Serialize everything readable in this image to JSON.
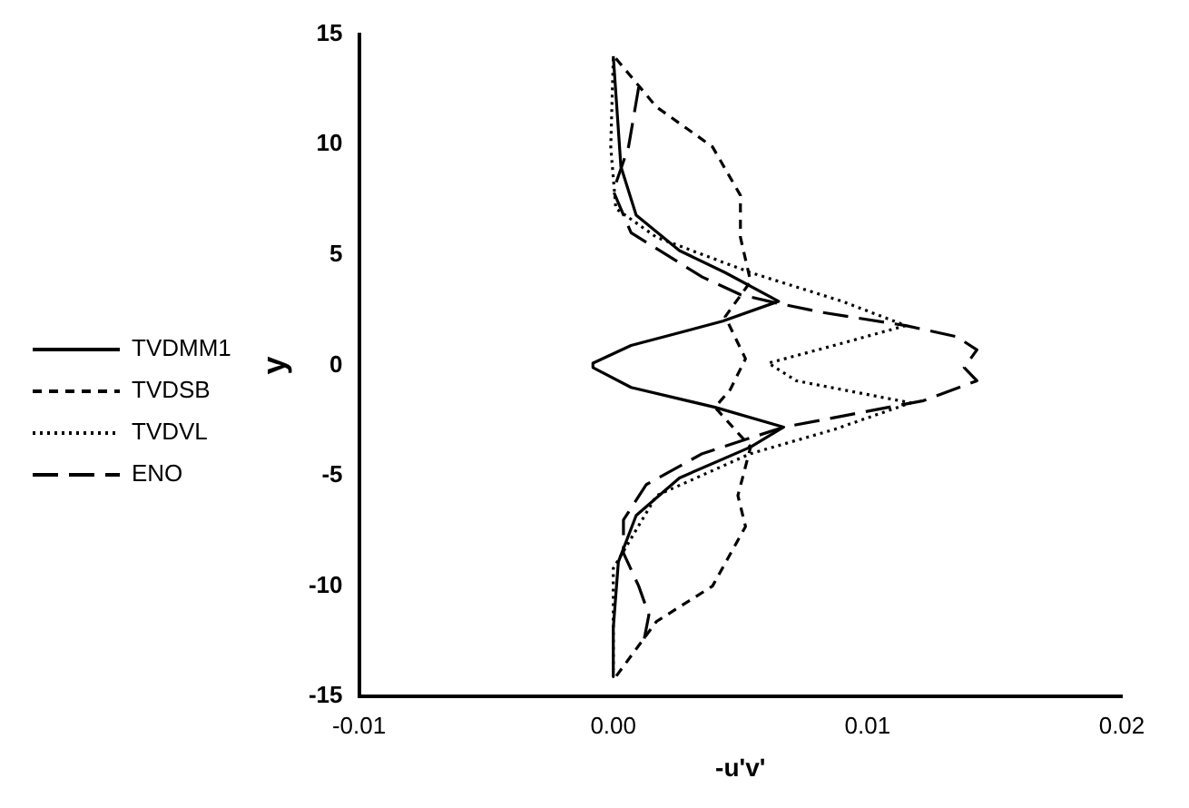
{
  "chart_data": {
    "type": "line",
    "xlabel": "-u'v'",
    "ylabel": "y",
    "xlim": [
      -0.01,
      0.02
    ],
    "ylim": [
      -15,
      15
    ],
    "xticks": [
      -0.01,
      {
        "value": 0,
        "label": "0.00"
      },
      0.01,
      0.02
    ],
    "yticks": [
      -15,
      -10,
      -5,
      0,
      5,
      10,
      15
    ],
    "grid": false,
    "legend": "left",
    "marker": "none",
    "series": [
      {
        "name": "TVDMM1",
        "color": "#000000",
        "line_style": "solid",
        "x": [
          0.0,
          0.0003,
          0.0009,
          0.0026,
          0.0044,
          0.0065,
          0.0043,
          0.0007,
          -0.0008,
          -0.0008,
          0.0007,
          0.004,
          0.0067,
          0.0054,
          0.0026,
          0.0009,
          0.0002,
          0.0,
          0.0
        ],
        "values": [
          14.0,
          9.0,
          6.8,
          5.2,
          4.2,
          2.9,
          2.0,
          0.9,
          0.1,
          -0.1,
          -1.0,
          -1.9,
          -2.8,
          -3.7,
          -5.1,
          -6.8,
          -8.9,
          -11.9,
          -14.1
        ]
      },
      {
        "name": "TVDSB",
        "color": "#000000",
        "line_style": "dashed",
        "x": [
          0.0001,
          0.0017,
          0.0039,
          0.005,
          0.005,
          0.0054,
          0.0044,
          0.0052,
          0.0046,
          0.004,
          0.0054,
          0.0049,
          0.0052,
          0.0039,
          0.0017,
          0.0001
        ],
        "values": [
          13.9,
          11.7,
          9.9,
          7.7,
          5.8,
          3.8,
          2.2,
          0.3,
          -1.1,
          -1.9,
          -3.7,
          -5.9,
          -7.3,
          -10.0,
          -11.6,
          -14.1
        ]
      },
      {
        "name": "TVDVL",
        "color": "#000000",
        "line_style": "dotted",
        "x": [
          0.0,
          -0.0001,
          0.0001,
          0.0017,
          0.0054,
          0.009,
          0.0115,
          0.009,
          0.0061,
          0.0072,
          0.009,
          0.0117,
          0.0087,
          0.0054,
          0.0017,
          0.0,
          0.0
        ],
        "values": [
          13.9,
          9.9,
          7.1,
          5.8,
          4.2,
          2.9,
          1.8,
          1.0,
          0.1,
          -0.7,
          -1.1,
          -1.7,
          -2.9,
          -4.0,
          -5.9,
          -9.2,
          -13.8
        ]
      },
      {
        "name": "ENO",
        "color": "#000000",
        "line_style": "longdash",
        "x": [
          0.001,
          0.0006,
          0.0,
          0.0007,
          0.0035,
          0.005,
          0.0065,
          0.0082,
          0.0115,
          0.0135,
          0.0143,
          0.0138,
          0.0143,
          0.0122,
          0.009,
          0.0067,
          0.0035,
          0.0013,
          0.0004,
          0.0004,
          0.001,
          0.0014,
          0.0012
        ],
        "values": [
          12.6,
          9.9,
          7.9,
          6.0,
          4.0,
          3.2,
          2.8,
          2.4,
          1.8,
          1.3,
          0.7,
          -0.1,
          -0.7,
          -1.6,
          -2.3,
          -2.8,
          -4.0,
          -5.4,
          -7.0,
          -8.5,
          -10.0,
          -11.3,
          -12.5
        ]
      }
    ]
  }
}
